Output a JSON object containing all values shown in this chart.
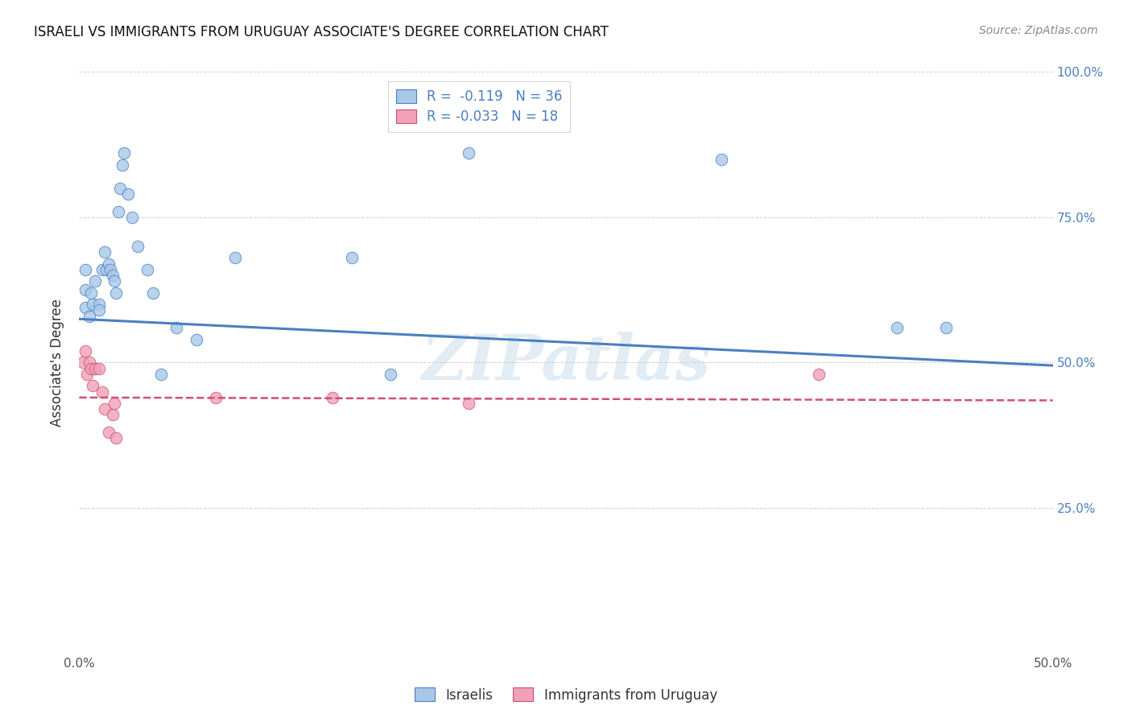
{
  "title": "ISRAELI VS IMMIGRANTS FROM URUGUAY ASSOCIATE'S DEGREE CORRELATION CHART",
  "source": "Source: ZipAtlas.com",
  "ylabel": "Associate's Degree",
  "watermark": "ZIPatlas",
  "xlim": [
    0.0,
    0.5
  ],
  "ylim": [
    0.0,
    1.0
  ],
  "xticks": [
    0.0,
    0.1,
    0.2,
    0.3,
    0.4,
    0.5
  ],
  "yticks": [
    0.0,
    0.25,
    0.5,
    0.75,
    1.0
  ],
  "xticklabels": [
    "0.0%",
    "",
    "",
    "",
    "",
    "50.0%"
  ],
  "yticklabels_right": [
    "",
    "25.0%",
    "50.0%",
    "75.0%",
    "100.0%"
  ],
  "blue_r": -0.119,
  "blue_n": 36,
  "pink_r": -0.033,
  "pink_n": 18,
  "blue_color": "#a8c8e8",
  "pink_color": "#f0a0b8",
  "blue_line_color": "#4a7fc0",
  "pink_line_color": "#d05070",
  "legend_label_blue": "Israelis",
  "legend_label_pink": "Immigrants from Uruguay",
  "blue_line_x0": 0.0,
  "blue_line_y0": 0.575,
  "blue_line_x1": 0.5,
  "blue_line_y1": 0.495,
  "pink_line_x0": 0.0,
  "pink_line_y0": 0.44,
  "pink_line_x1": 0.5,
  "pink_line_y1": 0.435,
  "blue_x": [
    0.003,
    0.003,
    0.003,
    0.005,
    0.006,
    0.007,
    0.008,
    0.01,
    0.01,
    0.012,
    0.013,
    0.014,
    0.015,
    0.016,
    0.017,
    0.018,
    0.019,
    0.02,
    0.021,
    0.022,
    0.023,
    0.025,
    0.027,
    0.03,
    0.035,
    0.038,
    0.042,
    0.05,
    0.06,
    0.08,
    0.14,
    0.16,
    0.2,
    0.33,
    0.42,
    0.445
  ],
  "blue_y": [
    0.595,
    0.625,
    0.66,
    0.58,
    0.62,
    0.6,
    0.64,
    0.6,
    0.59,
    0.66,
    0.69,
    0.66,
    0.67,
    0.66,
    0.65,
    0.64,
    0.62,
    0.76,
    0.8,
    0.84,
    0.86,
    0.79,
    0.75,
    0.7,
    0.66,
    0.62,
    0.48,
    0.56,
    0.54,
    0.68,
    0.68,
    0.48,
    0.86,
    0.85,
    0.56,
    0.56
  ],
  "pink_x": [
    0.002,
    0.003,
    0.004,
    0.005,
    0.006,
    0.007,
    0.008,
    0.01,
    0.012,
    0.013,
    0.015,
    0.017,
    0.018,
    0.019,
    0.07,
    0.13,
    0.2,
    0.38
  ],
  "pink_y": [
    0.5,
    0.52,
    0.48,
    0.5,
    0.49,
    0.46,
    0.49,
    0.49,
    0.45,
    0.42,
    0.38,
    0.41,
    0.43,
    0.37,
    0.44,
    0.44,
    0.43,
    0.48
  ]
}
